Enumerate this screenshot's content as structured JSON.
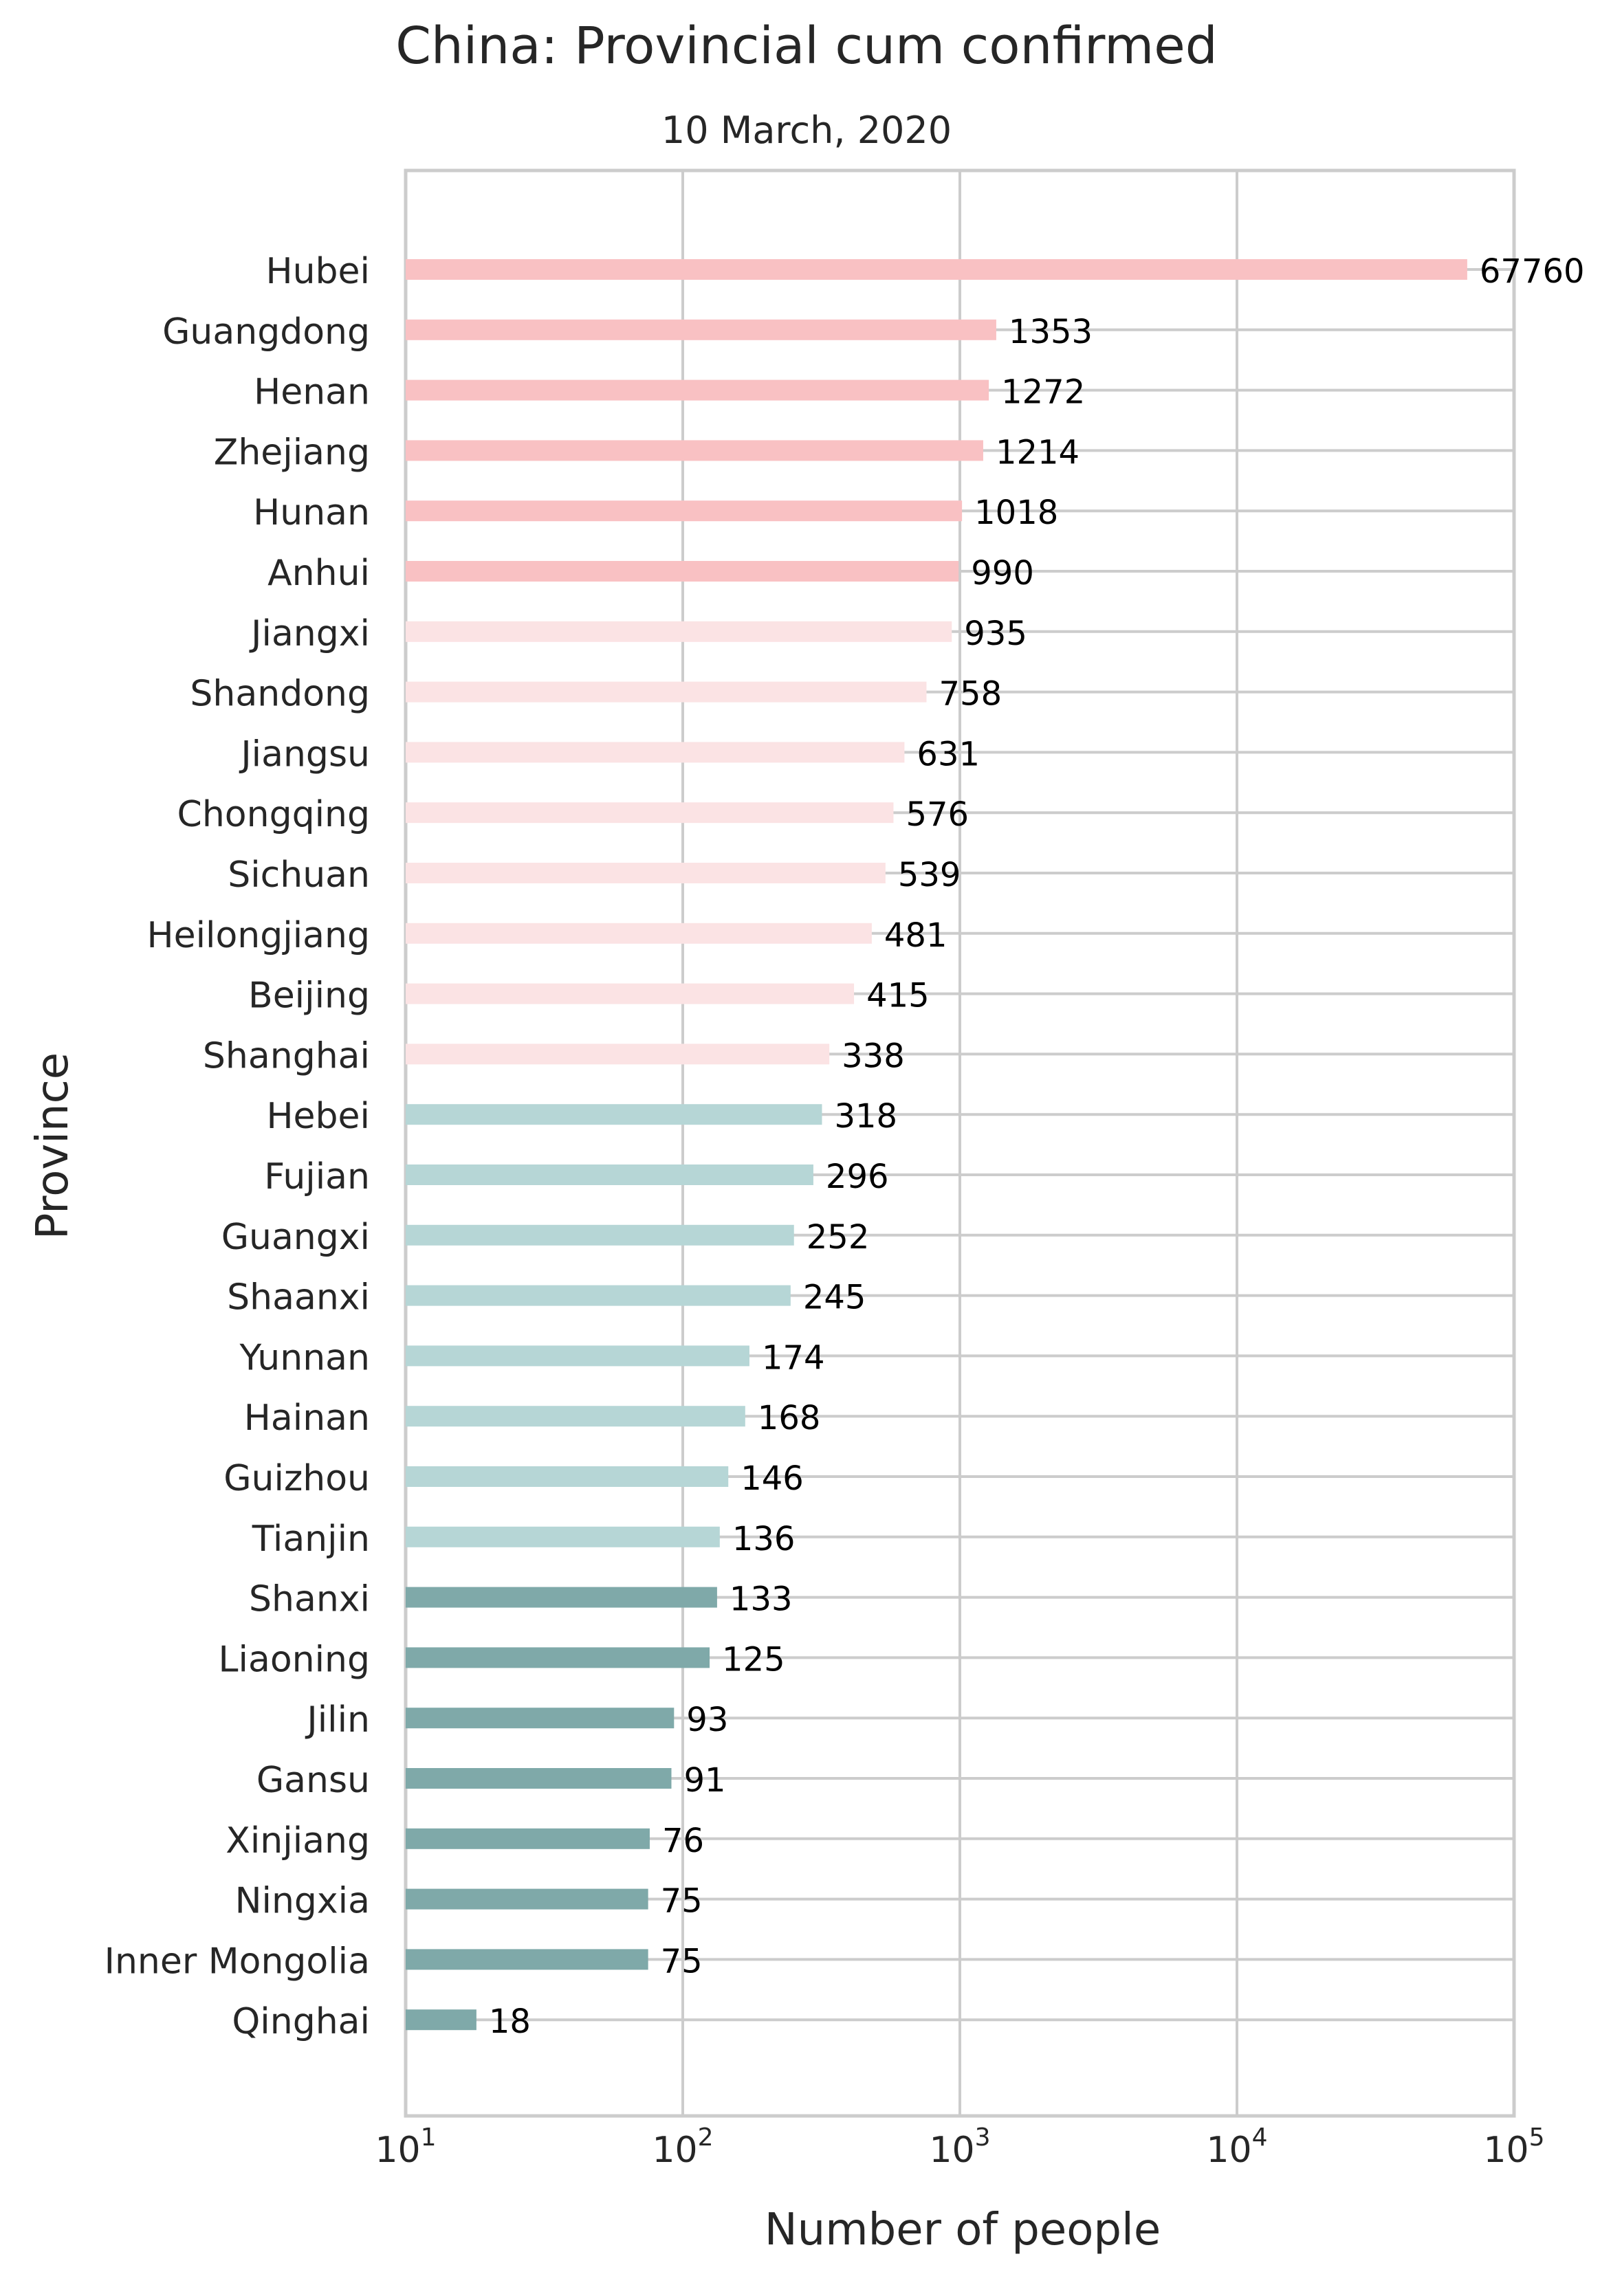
{
  "chart_data": {
    "type": "bar",
    "orientation": "horizontal",
    "title": "China: Provincial cum confirmed",
    "subtitle": "10 March, 2020",
    "xlabel": "Number of people",
    "ylabel": "Province",
    "xscale": "log",
    "xlim": [
      10,
      100000
    ],
    "xticks": [
      {
        "value": 10,
        "base": "10",
        "exp": "1"
      },
      {
        "value": 100,
        "base": "10",
        "exp": "2"
      },
      {
        "value": 1000,
        "base": "10",
        "exp": "3"
      },
      {
        "value": 10000,
        "base": "10",
        "exp": "4"
      },
      {
        "value": 100000,
        "base": "10",
        "exp": "5"
      }
    ],
    "grid": true,
    "colors": {
      "group1": "#f9c1c3",
      "group2": "#fbe3e4",
      "group3": "#b6d6d6",
      "group4": "#7fa9a9",
      "grid": "#cccccc",
      "label": "#000000",
      "text": "#262626"
    },
    "categories": [
      "Hubei",
      "Guangdong",
      "Henan",
      "Zhejiang",
      "Hunan",
      "Anhui",
      "Jiangxi",
      "Shandong",
      "Jiangsu",
      "Chongqing",
      "Sichuan",
      "Heilongjiang",
      "Beijing",
      "Shanghai",
      "Hebei",
      "Fujian",
      "Guangxi",
      "Shaanxi",
      "Yunnan",
      "Hainan",
      "Guizhou",
      "Tianjin",
      "Shanxi",
      "Liaoning",
      "Jilin",
      "Gansu",
      "Xinjiang",
      "Ningxia",
      "Inner Mongolia",
      "Qinghai"
    ],
    "values": [
      67760,
      1353,
      1272,
      1214,
      1018,
      990,
      935,
      758,
      631,
      576,
      539,
      481,
      415,
      338,
      318,
      296,
      252,
      245,
      174,
      168,
      146,
      136,
      133,
      125,
      93,
      91,
      76,
      75,
      75,
      18
    ],
    "value_labels": [
      "67760",
      "1353",
      "1272",
      "1214",
      "1018",
      "990",
      "935",
      "758",
      "631",
      "576",
      "539",
      "481",
      "415",
      "338",
      "318",
      "296",
      "252",
      "245",
      "174",
      "168",
      "146",
      "136",
      "133",
      "125",
      "93",
      "91",
      "76",
      "75",
      "75",
      "18"
    ],
    "color_groups": [
      1,
      1,
      1,
      1,
      1,
      1,
      2,
      2,
      2,
      2,
      2,
      2,
      2,
      2,
      3,
      3,
      3,
      3,
      3,
      3,
      3,
      3,
      4,
      4,
      4,
      4,
      4,
      4,
      4,
      4
    ]
  }
}
